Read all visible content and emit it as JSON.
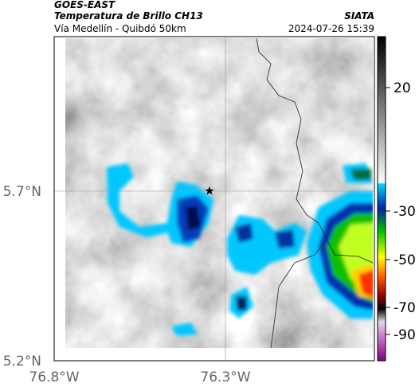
{
  "header": {
    "satellite": "GOES-EAST",
    "product": "Temperatura de Brillo CH13",
    "region": "Vía Medellín - Quibdó 50km",
    "source": "SIATA",
    "timestamp": "2024-07-26 15:39"
  },
  "map": {
    "lat_ticks": [
      "5.7°N",
      "5.2°N"
    ],
    "lon_ticks": [
      "76.8°W",
      "76.3°W"
    ]
  },
  "colorbar": {
    "ticks": [
      20,
      -30,
      -50,
      -70,
      -90
    ]
  }
}
